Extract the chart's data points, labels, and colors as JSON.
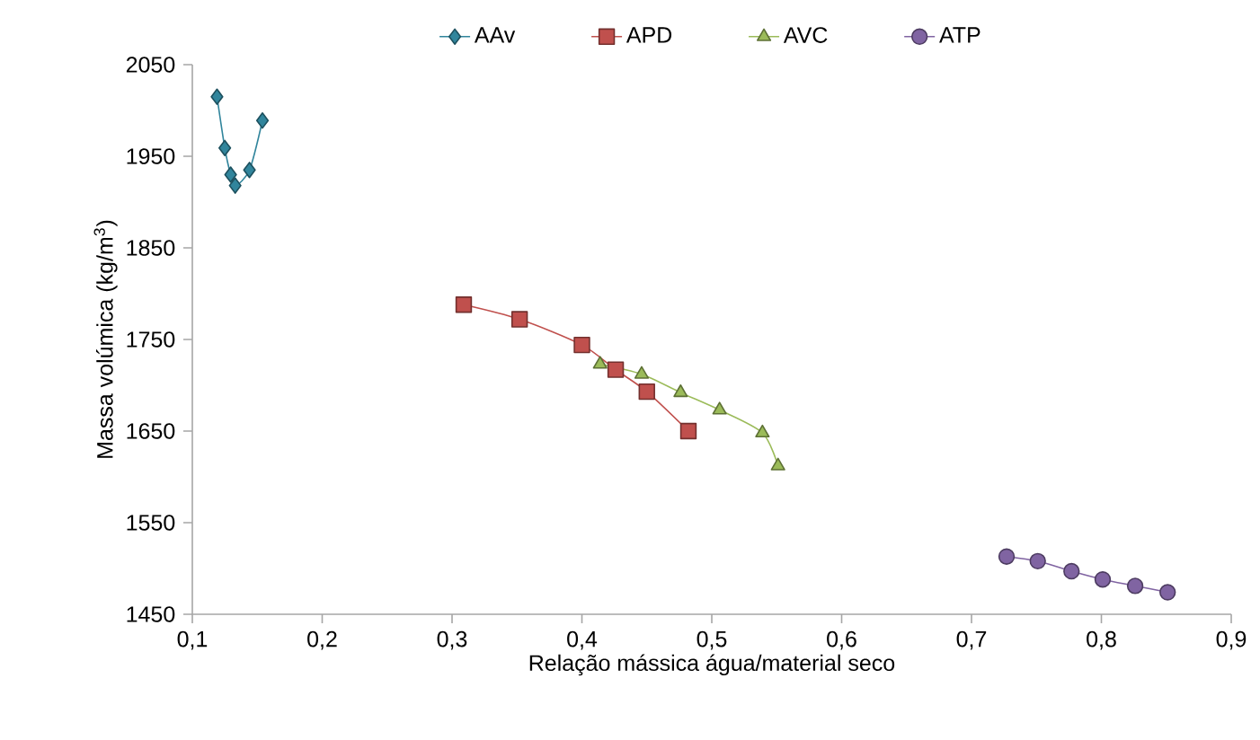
{
  "chart_data": {
    "type": "line",
    "xlabel": "Relação mássica água/material seco",
    "ylabel": "Massa volúmica (kg/m$^{3}$)",
    "xlim": [
      0.1,
      0.9
    ],
    "ylim": [
      1450,
      2050
    ],
    "xticks": [
      {
        "value": 0.1,
        "label": "0,1"
      },
      {
        "value": 0.2,
        "label": "0,2"
      },
      {
        "value": 0.3,
        "label": "0,3"
      },
      {
        "value": 0.4,
        "label": "0,4"
      },
      {
        "value": 0.5,
        "label": "0,5"
      },
      {
        "value": 0.6,
        "label": "0,6"
      },
      {
        "value": 0.7,
        "label": "0,7"
      },
      {
        "value": 0.8,
        "label": "0,8"
      },
      {
        "value": 0.9,
        "label": "0,9"
      }
    ],
    "yticks": [
      1450,
      1550,
      1650,
      1750,
      1850,
      1950,
      2050
    ],
    "legend": "top",
    "grid": false,
    "series": [
      {
        "name": "AAv",
        "color": "#31859c",
        "marker": "diamond",
        "x": [
          0.119,
          0.125,
          0.1295,
          0.133,
          0.144,
          0.154
        ],
        "values": [
          2015,
          1959,
          1930,
          1918,
          1935,
          1989
        ]
      },
      {
        "name": "APD",
        "color": "#c0504d",
        "marker": "square",
        "x": [
          0.309,
          0.352,
          0.4,
          0.426,
          0.45,
          0.482
        ],
        "values": [
          1788,
          1772,
          1744,
          1717,
          1693,
          1650
        ]
      },
      {
        "name": "AVC",
        "color": "#9bbb59",
        "marker": "triangle",
        "x": [
          0.414,
          0.446,
          0.476,
          0.506,
          0.539,
          0.551
        ],
        "values": [
          1723,
          1712,
          1692,
          1673,
          1648,
          1612
        ]
      },
      {
        "name": "ATP",
        "color": "#8064a2",
        "marker": "circle",
        "x": [
          0.727,
          0.751,
          0.777,
          0.801,
          0.826,
          0.851
        ],
        "values": [
          1513,
          1508,
          1497,
          1488,
          1481,
          1474
        ]
      }
    ]
  }
}
